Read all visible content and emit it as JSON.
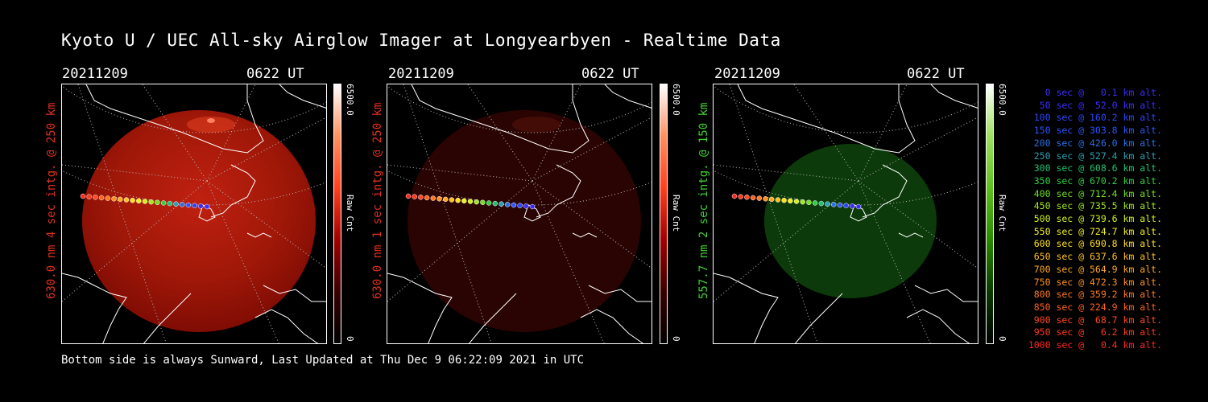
{
  "header": {
    "title": "Kyoto U / UEC All-sky Airglow Imager at Longyearbyen - Realtime Data"
  },
  "panels": [
    {
      "date": "20211209",
      "time": "0622 UT",
      "side_label": "630.0 nm 4 sec intg. @ 250 km",
      "color": "#e03020",
      "cbar_max": "6500.0",
      "cbar_min": "0",
      "cbar_unit": "Raw Cnt"
    },
    {
      "date": "20211209",
      "time": "0622 UT",
      "side_label": "630.0 nm 1 sec intg. @ 250 km",
      "color": "#e03020",
      "cbar_max": "6500.0",
      "cbar_min": "0",
      "cbar_unit": "Raw Cnt"
    },
    {
      "date": "20211209",
      "time": "0622 UT",
      "side_label": "557.7 nm 2 sec intg. @ 150 km",
      "color": "#40d030",
      "cbar_max": "6500.0",
      "cbar_min": "0",
      "cbar_unit": "Raw Cnt"
    }
  ],
  "legend": [
    {
      "text": "   0 sec @   0.1 km alt.",
      "color": "#3a2cff"
    },
    {
      "text": "  50 sec @  52.0 km alt.",
      "color": "#3a2cff"
    },
    {
      "text": " 100 sec @ 160.2 km alt.",
      "color": "#2a45ff"
    },
    {
      "text": " 150 sec @ 303.8 km alt.",
      "color": "#2a55ff"
    },
    {
      "text": " 200 sec @ 426.0 km alt.",
      "color": "#2a70e8"
    },
    {
      "text": " 250 sec @ 527.4 km alt.",
      "color": "#2aa0b0"
    },
    {
      "text": " 300 sec @ 608.6 km alt.",
      "color": "#20c070"
    },
    {
      "text": " 350 sec @ 670.2 km alt.",
      "color": "#30d040"
    },
    {
      "text": " 400 sec @ 712.4 km alt.",
      "color": "#70e020"
    },
    {
      "text": " 450 sec @ 735.5 km alt.",
      "color": "#a0e820"
    },
    {
      "text": " 500 sec @ 739.6 km alt.",
      "color": "#d0f020"
    },
    {
      "text": " 550 sec @ 724.7 km alt.",
      "color": "#f0f020"
    },
    {
      "text": " 600 sec @ 690.8 km alt.",
      "color": "#ffe020"
    },
    {
      "text": " 650 sec @ 637.6 km alt.",
      "color": "#ffc020"
    },
    {
      "text": " 700 sec @ 564.9 km alt.",
      "color": "#ffa820"
    },
    {
      "text": " 750 sec @ 472.3 km alt.",
      "color": "#ff9020"
    },
    {
      "text": " 800 sec @ 359.2 km alt.",
      "color": "#ff7820"
    },
    {
      "text": " 850 sec @ 224.9 km alt.",
      "color": "#ff6020"
    },
    {
      "text": " 900 sec @  68.7 km alt.",
      "color": "#ff4820"
    },
    {
      "text": " 950 sec @   6.2 km alt.",
      "color": "#ff3820"
    },
    {
      "text": "1000 sec @   0.4 km alt.",
      "color": "#ff2820"
    }
  ],
  "footer": {
    "text": "Bottom side is always Sunward, Last Updated at Thu Dec  9 06:22:09 2021 in UTC"
  }
}
